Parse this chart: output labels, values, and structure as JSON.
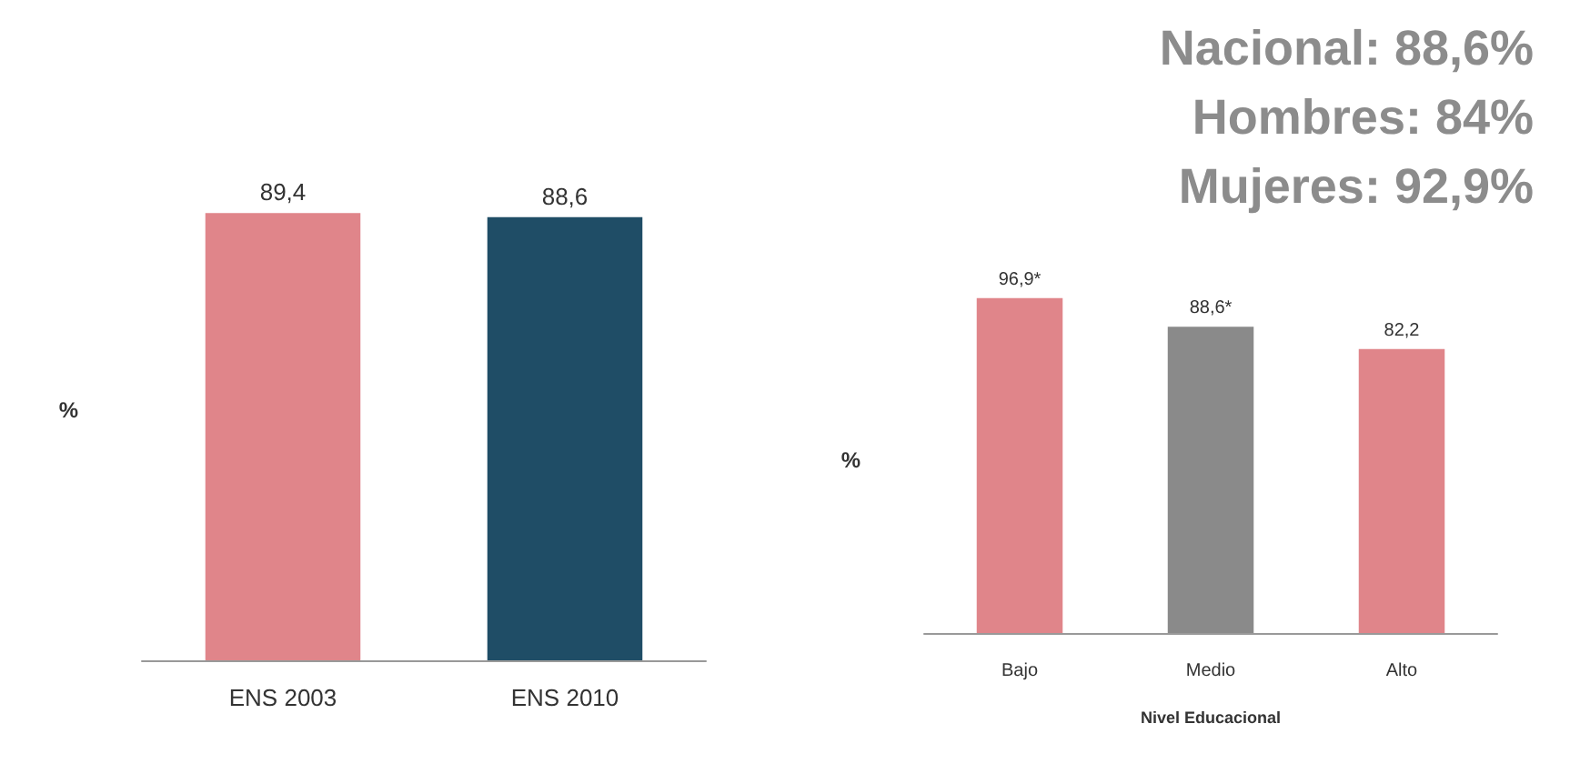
{
  "chart_data": [
    {
      "type": "bar",
      "ylabel": "%",
      "categories": [
        "ENS 2003",
        "ENS 2010"
      ],
      "values": [
        89.4,
        88.6
      ],
      "colors": [
        "#e0858a",
        "#1f4d66"
      ],
      "value_labels": [
        "89,4",
        "88,6"
      ],
      "grid": false
    },
    {
      "type": "bar",
      "annotations": [
        "Nacional: 88,6%",
        "Hombres: 84%",
        "Mujeres: 92,9%"
      ],
      "xlabel": "Nivel Educacional",
      "ylabel": "%",
      "categories": [
        "Bajo",
        "Medio",
        "Alto"
      ],
      "values": [
        96.9,
        88.6,
        82.2
      ],
      "colors": [
        "#e0858a",
        "#8a8a8a",
        "#e0858a"
      ],
      "value_labels": [
        "96,9*",
        "88,6*",
        "82,2"
      ],
      "grid": false
    }
  ]
}
